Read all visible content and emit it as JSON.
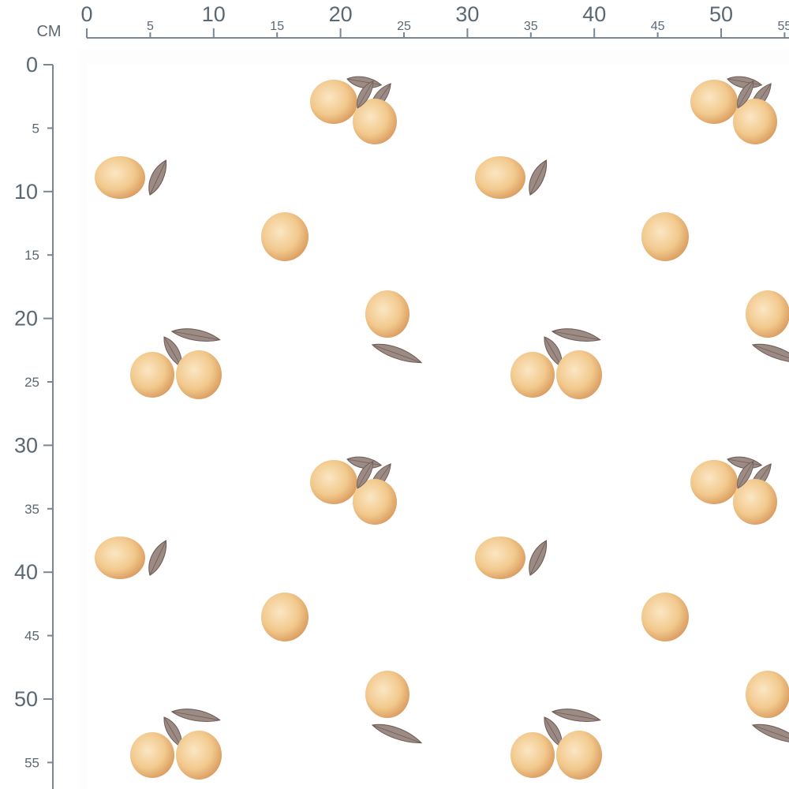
{
  "ruler": {
    "unit": "CM",
    "top_ticks": [
      0,
      5,
      10,
      15,
      20,
      25,
      30,
      35,
      40,
      45,
      50,
      55
    ],
    "left_ticks": [
      0,
      5,
      10,
      15,
      20,
      25,
      30,
      35,
      40,
      45,
      50,
      55
    ]
  }
}
